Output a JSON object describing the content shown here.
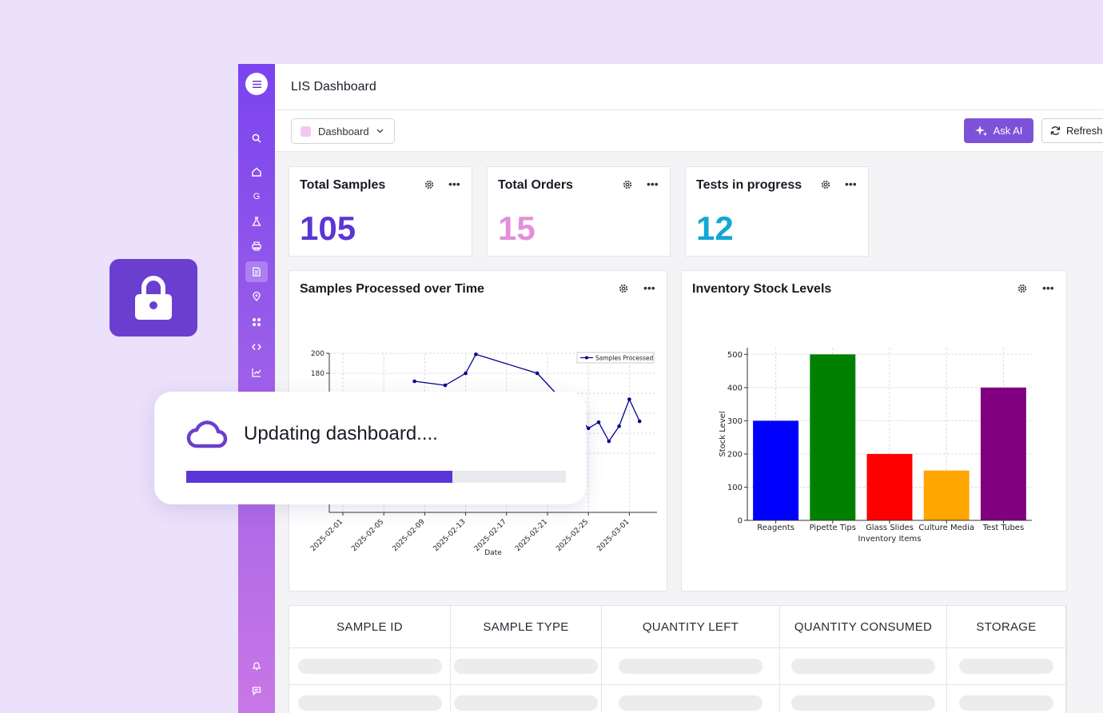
{
  "header": {
    "title": "LIS Dashboard"
  },
  "toolbar": {
    "dashboard_select": "Dashboard",
    "ask_ai_label": "Ask AI",
    "refresh_label": "Refresh"
  },
  "sidebar": {
    "icons": [
      "search-icon",
      "home-icon",
      "g-icon",
      "flask-icon",
      "printer-icon",
      "document-icon",
      "location-icon",
      "apps-icon",
      "code-icon",
      "chart-icon",
      "bell-icon",
      "chat-icon"
    ],
    "g_glyph": "G",
    "active_index": 5
  },
  "stats": [
    {
      "title": "Total Samples",
      "value": "105",
      "color": "#5b35d5"
    },
    {
      "title": "Total Orders",
      "value": "15",
      "color": "#e48fd9"
    },
    {
      "title": "Tests in progress",
      "value": "12",
      "color": "#12a7d6"
    }
  ],
  "charts": {
    "samples": {
      "title": "Samples Processed over Time"
    },
    "inventory": {
      "title": "Inventory Stock Levels"
    }
  },
  "chart_data": [
    {
      "type": "line",
      "legend": "Samples Processed",
      "legend_position": "top-right",
      "xlabel": "Date",
      "ylabel": "",
      "x_ticks": [
        "2025-02-01",
        "2025-02-05",
        "2025-02-09",
        "2025-02-13",
        "2025-02-17",
        "2025-02-21",
        "2025-02-25",
        "2025-03-01"
      ],
      "y_ticks_visible": [
        200,
        180
      ],
      "color": "#00008b",
      "grid": true,
      "points": [
        {
          "x": "2025-02-08",
          "y": 172
        },
        {
          "x": "2025-02-11",
          "y": 168
        },
        {
          "x": "2025-02-13",
          "y": 180
        },
        {
          "x": "2025-02-14",
          "y": 199
        },
        {
          "x": "2025-02-20",
          "y": 180
        },
        {
          "x": "2025-02-25",
          "y": 125
        },
        {
          "x": "2025-02-26",
          "y": 131
        },
        {
          "x": "2025-02-27",
          "y": 112
        },
        {
          "x": "2025-02-28",
          "y": 127
        },
        {
          "x": "2025-03-01",
          "y": 154
        },
        {
          "x": "2025-03-02",
          "y": 132
        }
      ]
    },
    {
      "type": "bar",
      "xlabel": "Inventory Items",
      "ylabel": "Stock Level",
      "categories": [
        "Reagents",
        "Pipette Tips",
        "Glass Slides",
        "Culture Media",
        "Test Tubes"
      ],
      "values": [
        300,
        500,
        200,
        150,
        400
      ],
      "colors": [
        "#0000ff",
        "#008000",
        "#ff0000",
        "#ffa500",
        "#800080"
      ],
      "ylim": [
        0,
        520
      ],
      "y_ticks": [
        0,
        100,
        200,
        300,
        400,
        500
      ],
      "grid": true
    }
  ],
  "table": {
    "columns": [
      "SAMPLE ID",
      "SAMPLE TYPE",
      "QUANTITY LEFT",
      "QUANTITY CONSUMED",
      "STORAGE"
    ]
  },
  "toast": {
    "message": "Updating dashboard....",
    "progress": 0.7
  }
}
